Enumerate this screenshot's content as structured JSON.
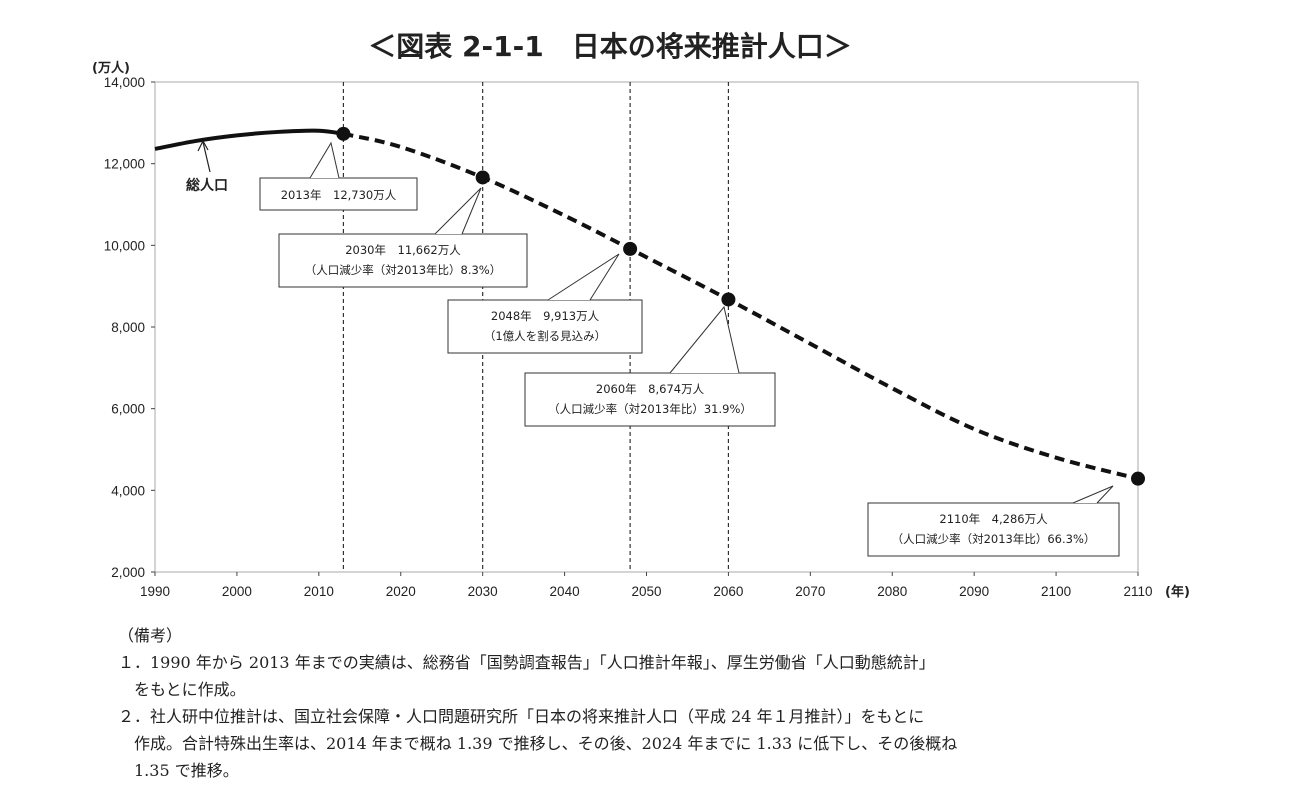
{
  "chart_data": {
    "type": "line",
    "title": "＜図表 2-1-1　日本の将来推計人口＞",
    "ylabel": "(万人)",
    "xlabel": "(年)",
    "xlim": [
      1990,
      2110
    ],
    "ylim": [
      2000,
      14000
    ],
    "x_ticks": [
      1990,
      2000,
      2010,
      2020,
      2030,
      2040,
      2050,
      2060,
      2070,
      2080,
      2090,
      2100,
      2110
    ],
    "y_ticks": [
      "2,000",
      "4,000",
      "6,000",
      "8,000",
      "10,000",
      "12,000",
      "14,000"
    ],
    "y_tick_values": [
      2000,
      4000,
      6000,
      8000,
      10000,
      12000,
      14000
    ],
    "series": [
      {
        "name": "総人口",
        "style": "solid",
        "x": [
          1990,
          1995,
          2000,
          2005,
          2010,
          2013
        ],
        "y": [
          12361,
          12557,
          12693,
          12777,
          12806,
          12730
        ]
      },
      {
        "name": "",
        "style": "dashed",
        "x": [
          2013,
          2020,
          2030,
          2040,
          2048,
          2050,
          2060,
          2070,
          2080,
          2090,
          2100,
          2110
        ],
        "y": [
          12730,
          12410,
          11662,
          10728,
          9913,
          9708,
          8674,
          7590,
          6500,
          5500,
          4800,
          4286
        ]
      }
    ],
    "vlines": [
      2013,
      2030,
      2048,
      2060
    ],
    "markers": [
      {
        "x": 2013,
        "y": 12730
      },
      {
        "x": 2030,
        "y": 11662
      },
      {
        "x": 2048,
        "y": 9913
      },
      {
        "x": 2060,
        "y": 8674
      },
      {
        "x": 2110,
        "y": 4286
      }
    ],
    "annotations": [
      {
        "lines": [
          "2013年　12,730万人"
        ]
      },
      {
        "lines": [
          "2030年　11,662万人",
          "（人口減少率（対2013年比）8.3%）"
        ]
      },
      {
        "lines": [
          "2048年　9,913万人",
          "（1億人を割る見込み）"
        ]
      },
      {
        "lines": [
          "2060年　8,674万人",
          "（人口減少率（対2013年比）31.9%）"
        ]
      },
      {
        "lines": [
          "2110年　4,286万人",
          "（人口減少率（対2013年比）66.3%）"
        ]
      }
    ],
    "series_label": "総人口"
  },
  "notes": {
    "heading": "（備考）",
    "lines": [
      "１．1990 年から 2013 年までの実績は、総務省「国勢調査報告」「人口推計年報」、厚生労働省「人口動態統計」",
      "　をもとに作成。",
      "２．社人研中位推計は、国立社会保障・人口問題研究所「日本の将来推計人口（平成 24 年１月推計）」をもとに",
      "　作成。合計特殊出生率は、2014 年まで概ね 1.39 で推移し、その後、2024 年までに 1.33 に低下し、その後概ね",
      "　1.35 で推移。"
    ]
  }
}
